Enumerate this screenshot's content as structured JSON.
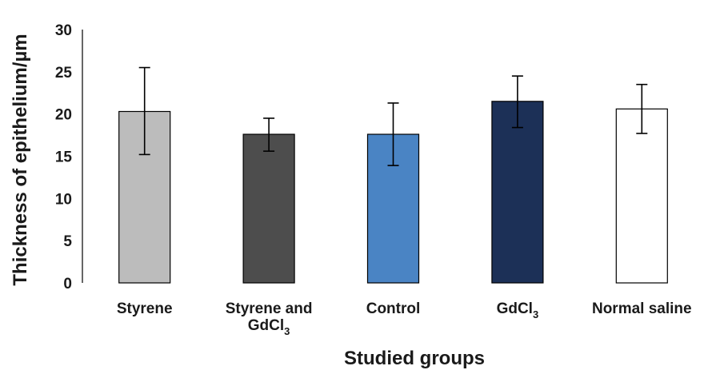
{
  "chart_data": {
    "type": "bar",
    "xlabel": "Studied groups",
    "ylabel": "Thickness of epithelium/µm",
    "ylim": [
      0,
      30
    ],
    "yticks": [
      0,
      5,
      10,
      15,
      20,
      25,
      30
    ],
    "grid": false,
    "legend": "none",
    "categories": [
      {
        "name": "Styrene",
        "label_lines": [
          "Styrene"
        ],
        "value": 20.3,
        "err_low": 15.2,
        "err_high": 25.5,
        "color": "#bcbcbc"
      },
      {
        "name": "Styrene and GdCl3",
        "label_lines": [
          "Styrene and",
          "GdCl3"
        ],
        "value": 17.6,
        "err_low": 15.6,
        "err_high": 19.5,
        "color": "#4d4d4d"
      },
      {
        "name": "Control",
        "label_lines": [
          "Control"
        ],
        "value": 17.6,
        "err_low": 13.9,
        "err_high": 21.3,
        "color": "#4a84c4"
      },
      {
        "name": "GdCl3",
        "label_lines": [
          "GdCl3"
        ],
        "value": 21.5,
        "err_low": 18.4,
        "err_high": 24.5,
        "color": "#1c3057"
      },
      {
        "name": "Normal saline",
        "label_lines": [
          "Normal saline"
        ],
        "value": 20.6,
        "err_low": 17.7,
        "err_high": 23.5,
        "color": "#ffffff"
      }
    ]
  }
}
